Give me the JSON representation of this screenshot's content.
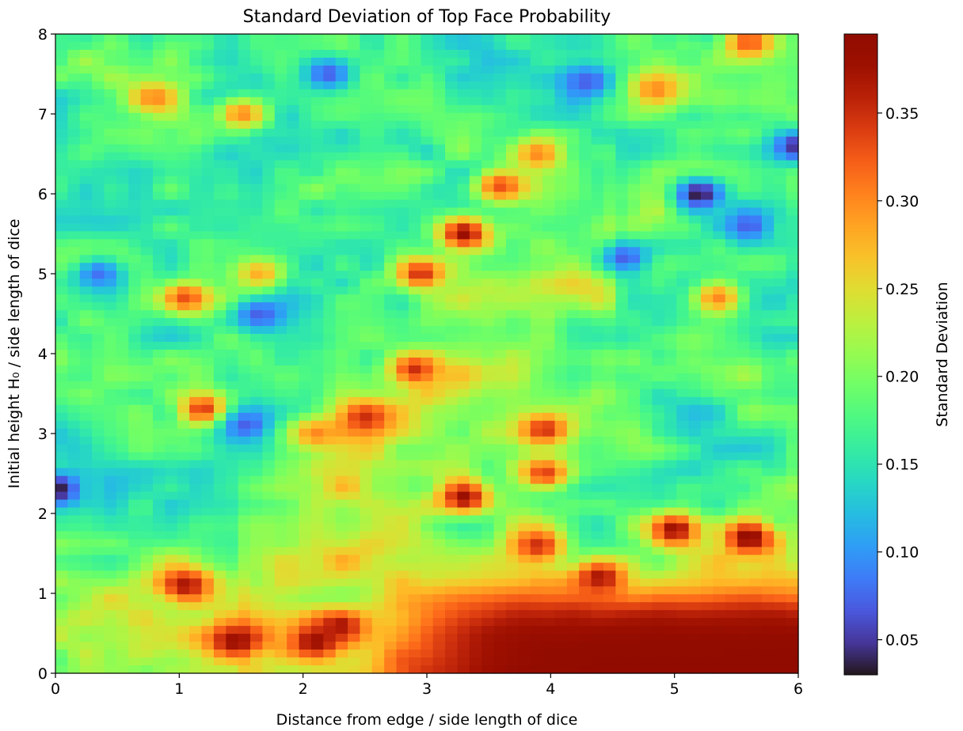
{
  "chart_data": {
    "type": "heatmap",
    "title": "Standard Deviation of Top Face Probability",
    "xlabel": "Distance from edge / side length of dice",
    "ylabel": "Initial height H₀ / side length of dice",
    "xlim": [
      0,
      6
    ],
    "ylim": [
      0,
      8
    ],
    "xticks": [
      "0",
      "1",
      "2",
      "3",
      "4",
      "5",
      "6"
    ],
    "yticks": [
      "0",
      "1",
      "2",
      "3",
      "4",
      "5",
      "6",
      "7",
      "8"
    ],
    "colormap": "turbo",
    "colorbar": {
      "label": "Standard Deviation",
      "vmin": 0.03,
      "vmax": 0.395,
      "ticks": [
        "0.05",
        "0.10",
        "0.15",
        "0.20",
        "0.25",
        "0.30",
        "0.35"
      ]
    },
    "grid_resolution": {
      "nx": 61,
      "ny": 81
    },
    "background_level": 0.17,
    "features": [
      {
        "kind": "high_band",
        "description": "bottom region H0 < 1",
        "x_from": 2.8,
        "y_top": 1.0,
        "value": 0.39
      },
      {
        "x": 0.0,
        "y": 2.3,
        "value": 0.03
      },
      {
        "x": 0.35,
        "y": 5.0,
        "value": 0.08
      },
      {
        "x": 0.8,
        "y": 7.2,
        "value": 0.3
      },
      {
        "x": 1.05,
        "y": 4.7,
        "value": 0.33
      },
      {
        "x": 1.05,
        "y": 1.1,
        "value": 0.37
      },
      {
        "x": 1.2,
        "y": 3.3,
        "value": 0.35
      },
      {
        "x": 1.45,
        "y": 0.4,
        "value": 0.38
      },
      {
        "x": 1.5,
        "y": 7.0,
        "value": 0.3
      },
      {
        "x": 1.65,
        "y": 4.5,
        "value": 0.07
      },
      {
        "x": 1.65,
        "y": 5.0,
        "value": 0.28
      },
      {
        "x": 1.55,
        "y": 3.1,
        "value": 0.07
      },
      {
        "x": 2.1,
        "y": 0.4,
        "value": 0.38
      },
      {
        "x": 2.1,
        "y": 3.0,
        "value": 0.3
      },
      {
        "x": 2.2,
        "y": 7.5,
        "value": 0.07
      },
      {
        "x": 2.3,
        "y": 0.6,
        "value": 0.37
      },
      {
        "x": 2.5,
        "y": 3.2,
        "value": 0.35
      },
      {
        "x": 2.9,
        "y": 3.8,
        "value": 0.35
      },
      {
        "x": 2.95,
        "y": 5.0,
        "value": 0.35
      },
      {
        "x": 3.3,
        "y": 2.2,
        "value": 0.38
      },
      {
        "x": 3.3,
        "y": 5.5,
        "value": 0.38
      },
      {
        "x": 3.6,
        "y": 6.1,
        "value": 0.33
      },
      {
        "x": 3.9,
        "y": 6.5,
        "value": 0.3
      },
      {
        "x": 3.95,
        "y": 3.05,
        "value": 0.35
      },
      {
        "x": 3.95,
        "y": 2.5,
        "value": 0.34
      },
      {
        "x": 3.9,
        "y": 1.6,
        "value": 0.35
      },
      {
        "x": 4.4,
        "y": 1.2,
        "value": 0.37
      },
      {
        "x": 4.3,
        "y": 7.4,
        "value": 0.07
      },
      {
        "x": 4.85,
        "y": 7.3,
        "value": 0.3
      },
      {
        "x": 5.2,
        "y": 6.0,
        "value": 0.03
      },
      {
        "x": 4.6,
        "y": 5.2,
        "value": 0.07
      },
      {
        "x": 5.0,
        "y": 1.8,
        "value": 0.38
      },
      {
        "x": 5.6,
        "y": 1.7,
        "value": 0.39
      },
      {
        "x": 5.6,
        "y": 7.9,
        "value": 0.33
      },
      {
        "x": 5.6,
        "y": 5.6,
        "value": 0.07
      },
      {
        "x": 6.0,
        "y": 6.6,
        "value": 0.04
      },
      {
        "x": 5.35,
        "y": 4.7,
        "value": 0.3
      }
    ]
  }
}
